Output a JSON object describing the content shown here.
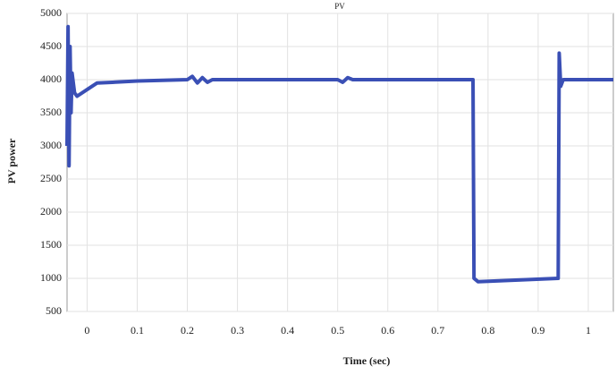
{
  "chart_data": {
    "type": "line",
    "title": "PV",
    "xlabel": "Time (sec)",
    "ylabel": "PV power",
    "x": [
      -0.04,
      -0.038,
      -0.036,
      -0.034,
      -0.032,
      -0.03,
      -0.025,
      -0.02,
      0,
      0.02,
      0.05,
      0.1,
      0.2,
      0.21,
      0.22,
      0.23,
      0.24,
      0.25,
      0.5,
      0.51,
      0.52,
      0.53,
      0.77,
      0.772,
      0.78,
      0.94,
      0.942,
      0.945,
      0.95,
      1.05
    ],
    "values": [
      3000,
      4800,
      2700,
      4500,
      3500,
      4100,
      3800,
      3750,
      3850,
      3950,
      3960,
      3980,
      4000,
      4050,
      3950,
      4030,
      3960,
      4000,
      4000,
      3960,
      4030,
      4000,
      4000,
      1000,
      950,
      1000,
      4400,
      3900,
      4000,
      4000
    ],
    "color": "#3a4fb5",
    "xlim": [
      -0.04,
      1.05
    ],
    "ylim": [
      500,
      5000
    ],
    "xticks": [
      0,
      0.1,
      0.2,
      0.3,
      0.4,
      0.5,
      0.6,
      0.7,
      0.8,
      0.9,
      1
    ],
    "yticks": [
      500,
      1000,
      1500,
      2000,
      2500,
      3000,
      3500,
      4000,
      4500,
      5000
    ],
    "grid": true
  }
}
